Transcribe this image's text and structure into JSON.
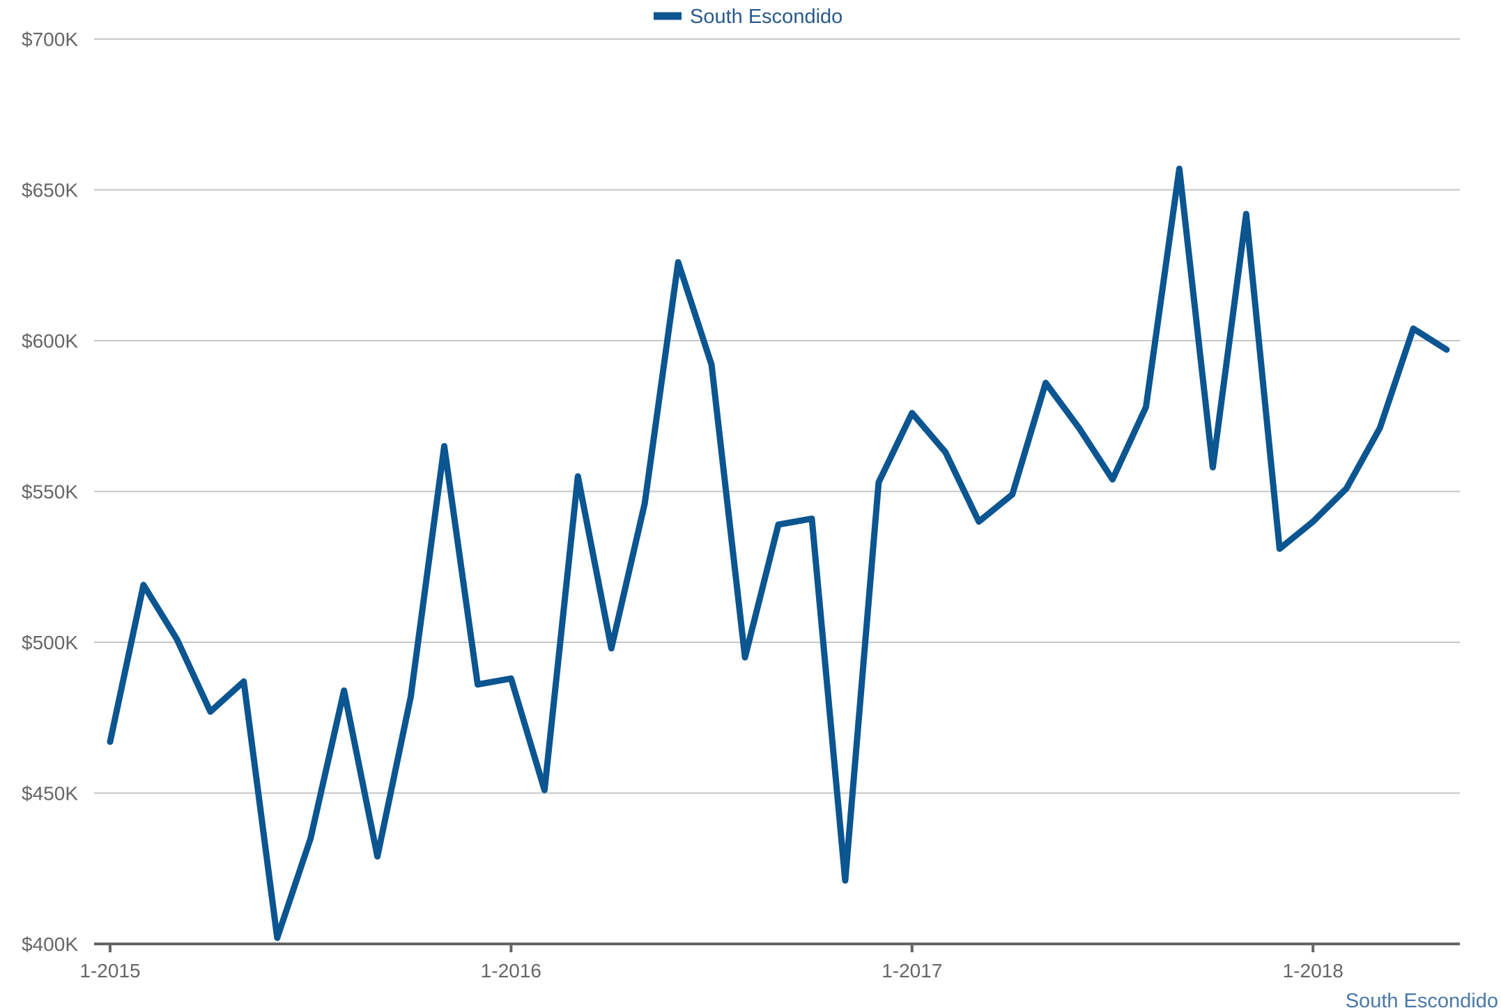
{
  "legend": {
    "series_label": "South Escondido"
  },
  "credit": {
    "text": "South Escondido"
  },
  "colors": {
    "series": "#0b5591",
    "gridline": "#c6c6c6",
    "axis": "#666666",
    "tick_text": "#666666"
  },
  "chart_data": {
    "type": "line",
    "title": "",
    "xlabel": "",
    "ylabel": "",
    "ylim": [
      400000,
      700000
    ],
    "y_ticks": [
      {
        "value": 400000,
        "label": "$400K"
      },
      {
        "value": 450000,
        "label": "$450K"
      },
      {
        "value": 500000,
        "label": "$500K"
      },
      {
        "value": 550000,
        "label": "$550K"
      },
      {
        "value": 600000,
        "label": "$600K"
      },
      {
        "value": 650000,
        "label": "$650K"
      },
      {
        "value": 700000,
        "label": "$700K"
      }
    ],
    "x_ticks": [
      "1-2015",
      "1-2016",
      "1-2017",
      "1-2018"
    ],
    "legend_position": "top-center",
    "grid": true,
    "x": [
      "1-2015",
      "2-2015",
      "3-2015",
      "4-2015",
      "5-2015",
      "6-2015",
      "7-2015",
      "8-2015",
      "9-2015",
      "10-2015",
      "11-2015",
      "12-2015",
      "1-2016",
      "2-2016",
      "3-2016",
      "4-2016",
      "5-2016",
      "6-2016",
      "7-2016",
      "8-2016",
      "9-2016",
      "10-2016",
      "11-2016",
      "12-2016",
      "1-2017",
      "2-2017",
      "3-2017",
      "4-2017",
      "5-2017",
      "6-2017",
      "7-2017",
      "8-2017",
      "9-2017",
      "10-2017",
      "11-2017",
      "12-2017",
      "1-2018",
      "2-2018",
      "3-2018",
      "4-2018",
      "5-2018"
    ],
    "series": [
      {
        "name": "South Escondido",
        "values": [
          467000,
          519000,
          501000,
          477000,
          487000,
          402000,
          435000,
          484000,
          429000,
          482000,
          565000,
          486000,
          488000,
          451000,
          555000,
          498000,
          546000,
          626000,
          592000,
          495000,
          539000,
          541000,
          421000,
          553000,
          576000,
          563000,
          540000,
          549000,
          586000,
          571000,
          554000,
          578000,
          657000,
          558000,
          642000,
          531000,
          540000,
          551000,
          571000,
          604000,
          597000
        ]
      }
    ]
  }
}
